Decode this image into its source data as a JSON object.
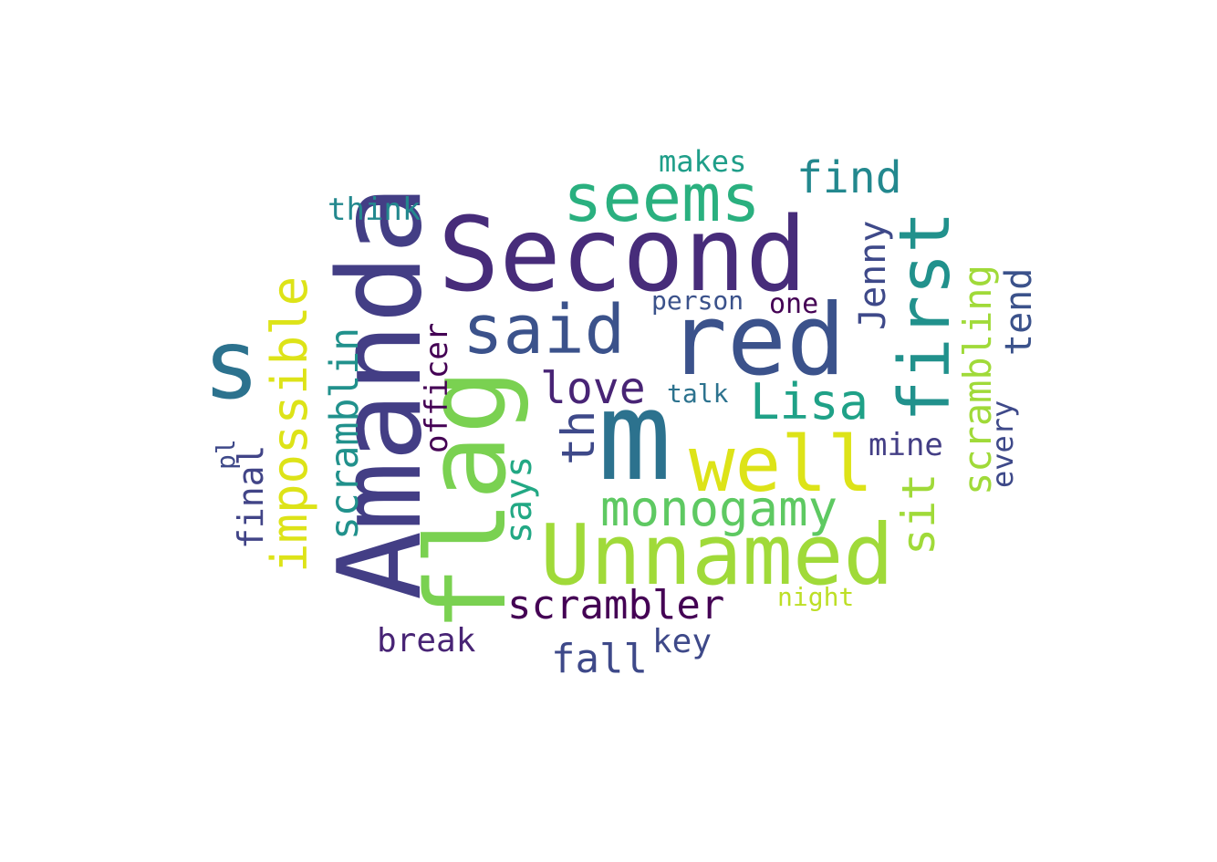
{
  "words": [
    {
      "text": "Second",
      "color": "#472c7a"
    },
    {
      "text": "Amanda",
      "color": "#433e85"
    },
    {
      "text": "m",
      "color": "#2c728e"
    },
    {
      "text": "flag",
      "color": "#7ad151"
    },
    {
      "text": "red",
      "color": "#3b528b"
    },
    {
      "text": "Unnamed",
      "color": "#a0da39"
    },
    {
      "text": "first",
      "color": "#21918c"
    },
    {
      "text": "s",
      "color": "#2c728e"
    },
    {
      "text": "seems",
      "color": "#2ab07f"
    },
    {
      "text": "said",
      "color": "#3b528b"
    },
    {
      "text": "well",
      "color": "#dde318"
    },
    {
      "text": "impossible",
      "color": "#dde318"
    },
    {
      "text": "monogamy",
      "color": "#5ec962"
    },
    {
      "text": "scrambler",
      "color": "#440154"
    },
    {
      "text": "scramblin",
      "color": "#21918c"
    },
    {
      "text": "scrambling",
      "color": "#a0da39"
    },
    {
      "text": "Lisa",
      "color": "#1fa187"
    },
    {
      "text": "love",
      "color": "#482475"
    },
    {
      "text": "find",
      "color": "#23888e"
    },
    {
      "text": "th",
      "color": "#3e4989"
    },
    {
      "text": "sit",
      "color": "#a0da39"
    },
    {
      "text": "says",
      "color": "#22a884"
    },
    {
      "text": "Jenny",
      "color": "#3e4989"
    },
    {
      "text": "tend",
      "color": "#3b528b"
    },
    {
      "text": "fall",
      "color": "#3e4989"
    },
    {
      "text": "officer",
      "color": "#440154"
    },
    {
      "text": "final",
      "color": "#414487"
    },
    {
      "text": "break",
      "color": "#482475"
    },
    {
      "text": "key",
      "color": "#3e4989"
    },
    {
      "text": "mine",
      "color": "#433e85"
    },
    {
      "text": "every",
      "color": "#3e4989"
    },
    {
      "text": "think",
      "color": "#23888e"
    },
    {
      "text": "makes",
      "color": "#1f9e89"
    },
    {
      "text": "person",
      "color": "#3b528b"
    },
    {
      "text": "one",
      "color": "#440154"
    },
    {
      "text": "talk",
      "color": "#2c728e"
    },
    {
      "text": "night",
      "color": "#bddf26"
    },
    {
      "text": "pl",
      "color": "#3e4989"
    }
  ]
}
